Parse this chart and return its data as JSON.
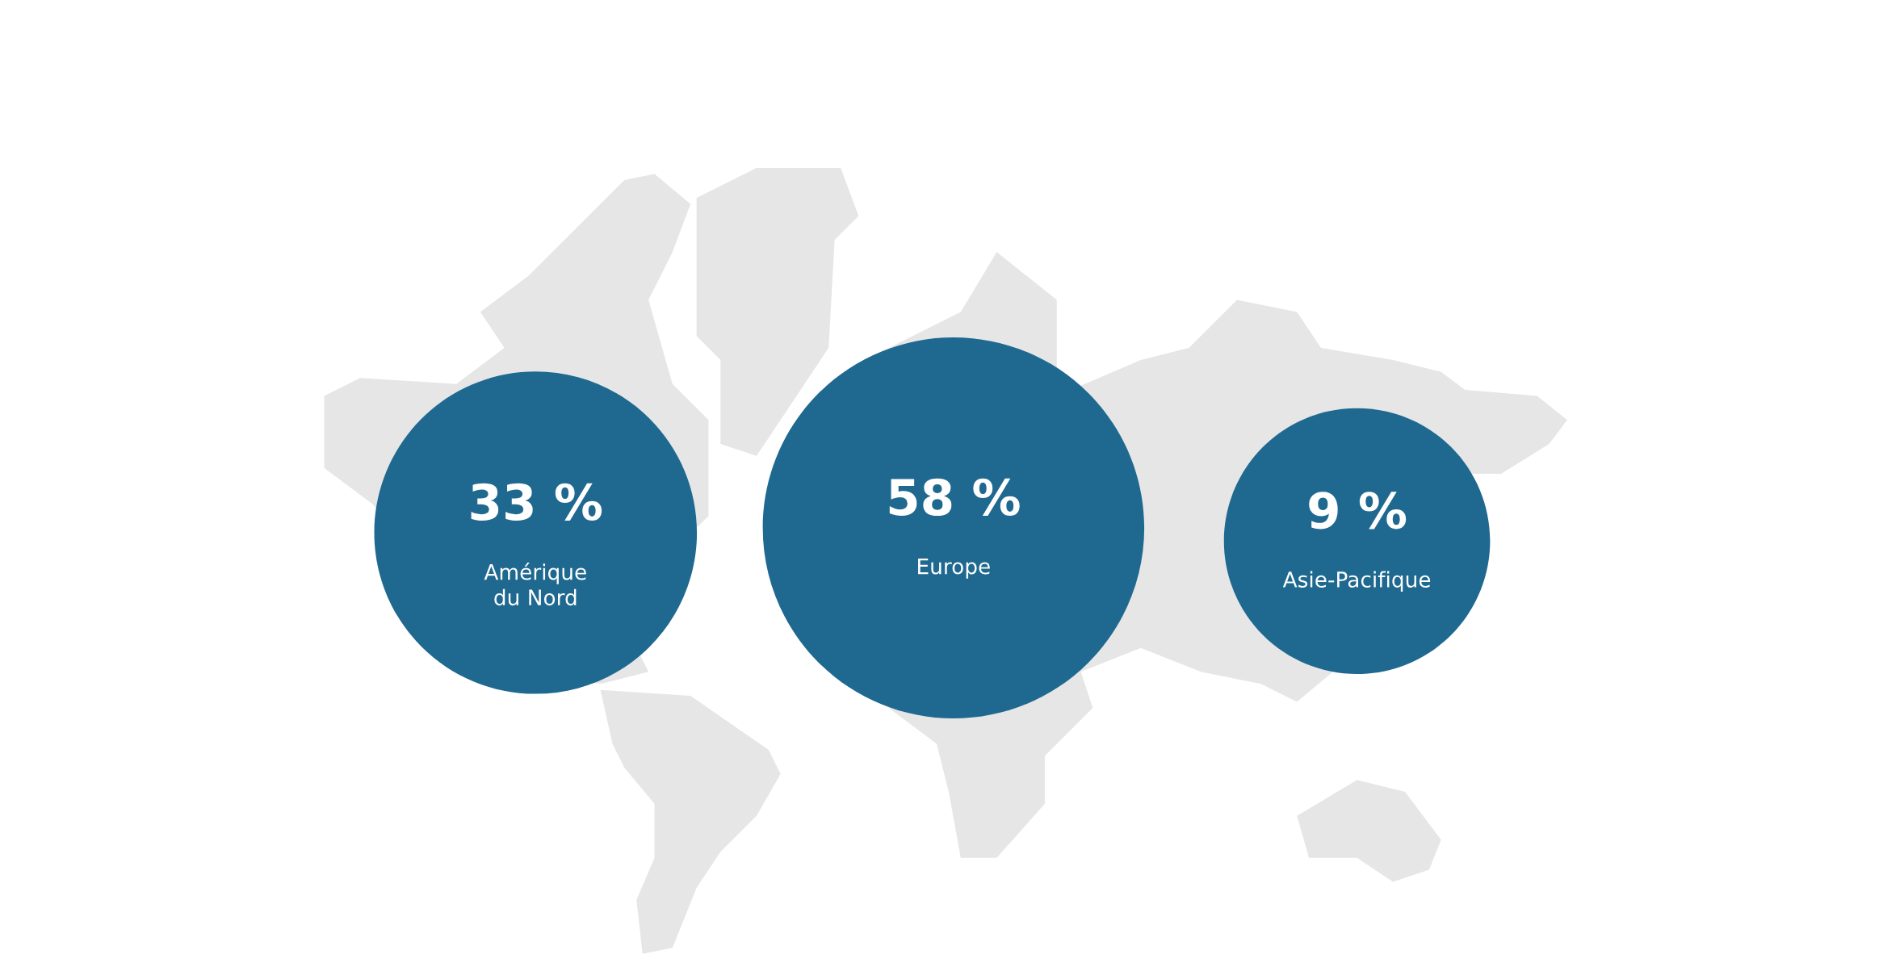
{
  "chart_data": {
    "type": "other",
    "categories": [
      "Amérique du Nord",
      "Europe",
      "Asie-Pacifique"
    ],
    "values": [
      33,
      58,
      9
    ],
    "value_labels": [
      "33 %",
      "58 %",
      "9 %"
    ],
    "color": "#1f6990"
  }
}
